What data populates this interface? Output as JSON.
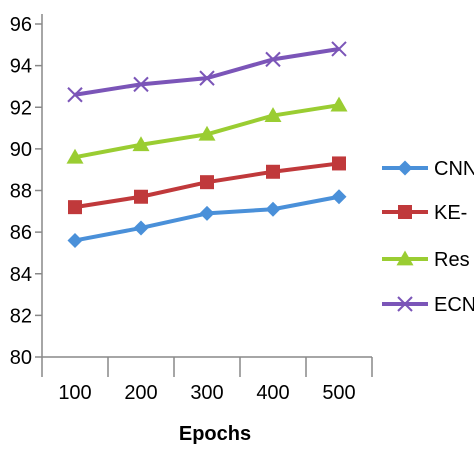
{
  "chart_data": {
    "type": "line",
    "xlabel": "Epochs",
    "ylabel": "",
    "title": "",
    "x": [
      100,
      200,
      300,
      400,
      500
    ],
    "ylim": [
      80,
      96
    ],
    "yticks": [
      80,
      82,
      84,
      86,
      88,
      90,
      92,
      94,
      96
    ],
    "ytick_labels": [
      "80",
      "82",
      "84",
      "86",
      "88",
      "90",
      "92",
      "94",
      "96"
    ],
    "xtick_labels": [
      "100",
      "200",
      "300",
      "400",
      "500"
    ],
    "grid": false,
    "legend_position": "right",
    "series": [
      {
        "name": "CNN",
        "legend_text": "CNN",
        "color": "#4a90d9",
        "marker": "diamond",
        "values": [
          85.6,
          86.2,
          86.9,
          87.1,
          87.7
        ]
      },
      {
        "name": "KE-",
        "legend_text": "KE-",
        "color": "#c0393b",
        "marker": "square",
        "values": [
          87.2,
          87.7,
          88.4,
          88.9,
          89.3
        ]
      },
      {
        "name": "Res",
        "legend_text": "Res",
        "color": "#9acd32",
        "marker": "triangle",
        "values": [
          89.6,
          90.2,
          90.7,
          91.6,
          92.1
        ]
      },
      {
        "name": "ECN",
        "legend_text": "ECN",
        "color": "#7b55b8",
        "marker": "x",
        "values": [
          92.6,
          93.1,
          93.4,
          94.3,
          94.8
        ]
      }
    ]
  }
}
